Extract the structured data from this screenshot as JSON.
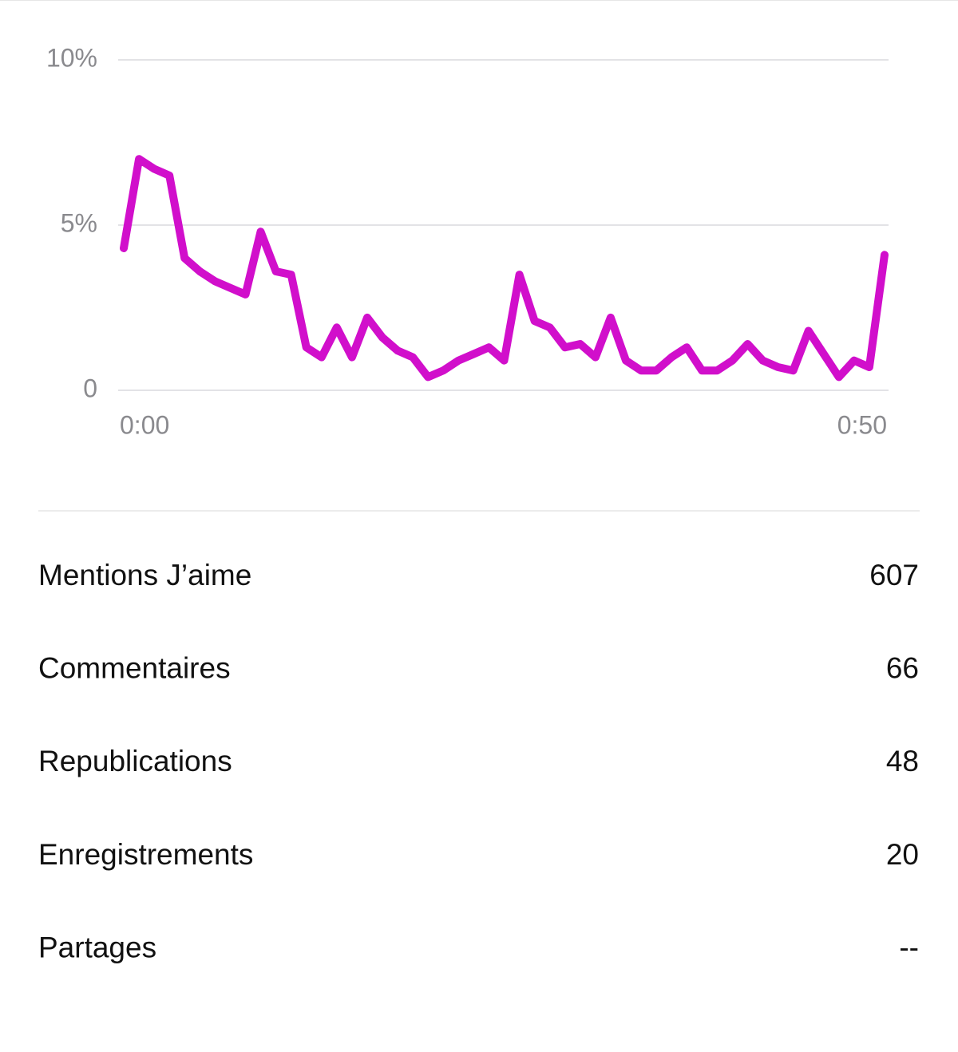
{
  "chart_data": {
    "type": "line",
    "color": "#d10fcb",
    "grid": true,
    "categories": [
      "0:00",
      null,
      null,
      null,
      null,
      null,
      null,
      null,
      null,
      null,
      null,
      null,
      null,
      null,
      null,
      null,
      null,
      null,
      null,
      null,
      null,
      null,
      null,
      null,
      null,
      null,
      null,
      null,
      null,
      null,
      null,
      null,
      null,
      null,
      null,
      null,
      null,
      null,
      null,
      null,
      null,
      null,
      null,
      null,
      null,
      null,
      null,
      null,
      null,
      null,
      "0:50"
    ],
    "values": [
      4.3,
      7.0,
      6.7,
      6.5,
      4.0,
      3.6,
      3.3,
      3.1,
      2.9,
      4.8,
      3.6,
      3.5,
      1.3,
      1.0,
      1.9,
      1.0,
      2.2,
      1.6,
      1.2,
      1.0,
      0.4,
      0.6,
      0.9,
      1.1,
      1.3,
      0.9,
      3.5,
      2.1,
      1.9,
      1.3,
      1.4,
      1.0,
      2.2,
      0.9,
      0.6,
      0.6,
      1.0,
      1.3,
      0.6,
      0.6,
      0.9,
      1.4,
      0.9,
      0.7,
      0.6,
      1.8,
      1.1,
      0.4,
      0.9,
      0.7,
      4.1
    ],
    "ylim": [
      0,
      10
    ],
    "yticks": [
      0,
      {
        "value": 5,
        "label": "5%"
      },
      {
        "value": 10,
        "label": "10%"
      }
    ]
  },
  "stats": [
    {
      "label": "Mentions J’aime",
      "value": "607"
    },
    {
      "label": "Commentaires",
      "value": "66"
    },
    {
      "label": "Republications",
      "value": "48"
    },
    {
      "label": "Enregistrements",
      "value": "20"
    },
    {
      "label": "Partages",
      "value": "--"
    }
  ]
}
